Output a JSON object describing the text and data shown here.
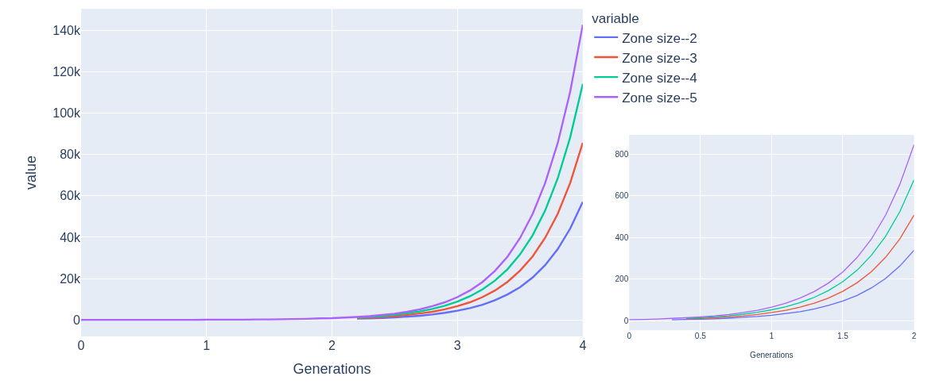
{
  "chart_data": [
    {
      "type": "line",
      "xlabel": "Generations",
      "ylabel": "value",
      "legend_title": "variable",
      "legend": "top right",
      "grid": true,
      "x": [
        0,
        0.1,
        0.2,
        0.3,
        0.4,
        0.5,
        0.6,
        0.7,
        0.8,
        0.9,
        1,
        1.1,
        1.2,
        1.3,
        1.4,
        1.5,
        1.6,
        1.7,
        1.8,
        1.9,
        2,
        2.1,
        2.2,
        2.3,
        2.4,
        2.5,
        2.6,
        2.7,
        2.8,
        2.9,
        3,
        3.1,
        3.2,
        3.3,
        3.4,
        3.5,
        3.6,
        3.7,
        3.8,
        3.9,
        4
      ],
      "series": [
        {
          "name": "Zone size--2",
          "color": "#636efa",
          "values": [
            null,
            null,
            null,
            null,
            null,
            null,
            null,
            null,
            null,
            null,
            null,
            null,
            null,
            null,
            null,
            null,
            null,
            null,
            null,
            null,
            null,
            null,
            600,
            700,
            900,
            1200,
            1600,
            2000,
            2600,
            3400,
            4400,
            5700,
            7300,
            9500,
            12300,
            15800,
            20500,
            26500,
            34200,
            44200,
            57100
          ]
        },
        {
          "name": "Zone size--3",
          "color": "#ef553b",
          "values": [
            null,
            null,
            null,
            null,
            null,
            null,
            null,
            null,
            null,
            null,
            null,
            null,
            null,
            null,
            null,
            null,
            null,
            null,
            null,
            null,
            null,
            null,
            800,
            1100,
            1400,
            1800,
            2400,
            3100,
            3900,
            5100,
            6600,
            8500,
            11000,
            14200,
            18400,
            23800,
            30700,
            39700,
            51300,
            66300,
            85700
          ]
        },
        {
          "name": "Zone size--4",
          "color": "#00cc96",
          "values": [
            null,
            null,
            null,
            null,
            null,
            null,
            null,
            null,
            null,
            null,
            null,
            null,
            null,
            null,
            null,
            null,
            null,
            null,
            null,
            null,
            null,
            null,
            1100,
            1500,
            1900,
            2400,
            3200,
            4100,
            5300,
            6800,
            8800,
            11400,
            14700,
            19000,
            24500,
            31700,
            40900,
            52900,
            68400,
            88400,
            114200
          ]
        },
        {
          "name": "Zone size--5",
          "color": "#ab63fa",
          "values": [
            0,
            0,
            0,
            0,
            0,
            0,
            0,
            0,
            0,
            0,
            100,
            100,
            100,
            100,
            200,
            200,
            300,
            400,
            500,
            700,
            800,
            1100,
            1400,
            1800,
            2400,
            3000,
            3900,
            5100,
            6600,
            8500,
            11000,
            14200,
            18300,
            23700,
            30600,
            39600,
            51200,
            66200,
            85500,
            110500,
            142800
          ]
        }
      ],
      "xlim": [
        0,
        4
      ],
      "xticks": [
        0,
        1,
        2,
        3,
        4
      ],
      "ylim": [
        -8000,
        150500
      ],
      "yticks": [
        0,
        {
          "value": 20000,
          "label": "20k"
        },
        {
          "value": 40000,
          "label": "40k"
        },
        {
          "value": 60000,
          "label": "60k"
        },
        {
          "value": 80000,
          "label": "80k"
        },
        {
          "value": 100000,
          "label": "100k"
        },
        {
          "value": 120000,
          "label": "120k"
        },
        {
          "value": 140000,
          "label": "140k"
        }
      ]
    },
    {
      "type": "line",
      "xlabel": "Generations",
      "grid": true,
      "x": [
        0,
        0.1,
        0.2,
        0.3,
        0.4,
        0.5,
        0.6,
        0.7,
        0.8,
        0.9,
        1,
        1.1,
        1.2,
        1.3,
        1.4,
        1.5,
        1.6,
        1.7,
        1.8,
        1.9,
        2
      ],
      "series": [
        {
          "color": "#636efa",
          "values": [
            null,
            null,
            null,
            4,
            6,
            7,
            9,
            12,
            16,
            20,
            26,
            34,
            43,
            56,
            73,
            94,
            121,
            157,
            202,
            262,
            338
          ]
        },
        {
          "color": "#ef553b",
          "values": [
            null,
            null,
            null,
            null,
            8,
            11,
            14,
            18,
            23,
            30,
            39,
            50,
            65,
            84,
            109,
            141,
            182,
            235,
            304,
            392,
            507
          ]
        },
        {
          "color": "#00cc96",
          "values": [
            null,
            null,
            null,
            null,
            11,
            14,
            19,
            24,
            31,
            40,
            52,
            67,
            87,
            112,
            145,
            187,
            242,
            313,
            405,
            523,
            676
          ]
        },
        {
          "color": "#ab63fa",
          "values": [
            5,
            6,
            8,
            11,
            14,
            18,
            23,
            30,
            39,
            50,
            65,
            84,
            109,
            140,
            181,
            234,
            303,
            391,
            506,
            654,
            845
          ]
        }
      ],
      "xlim": [
        0,
        2
      ],
      "xticks": [
        0,
        0.5,
        1,
        1.5,
        2
      ],
      "ylim": [
        -46,
        892
      ],
      "yticks": [
        0,
        200,
        400,
        600,
        800
      ]
    }
  ]
}
